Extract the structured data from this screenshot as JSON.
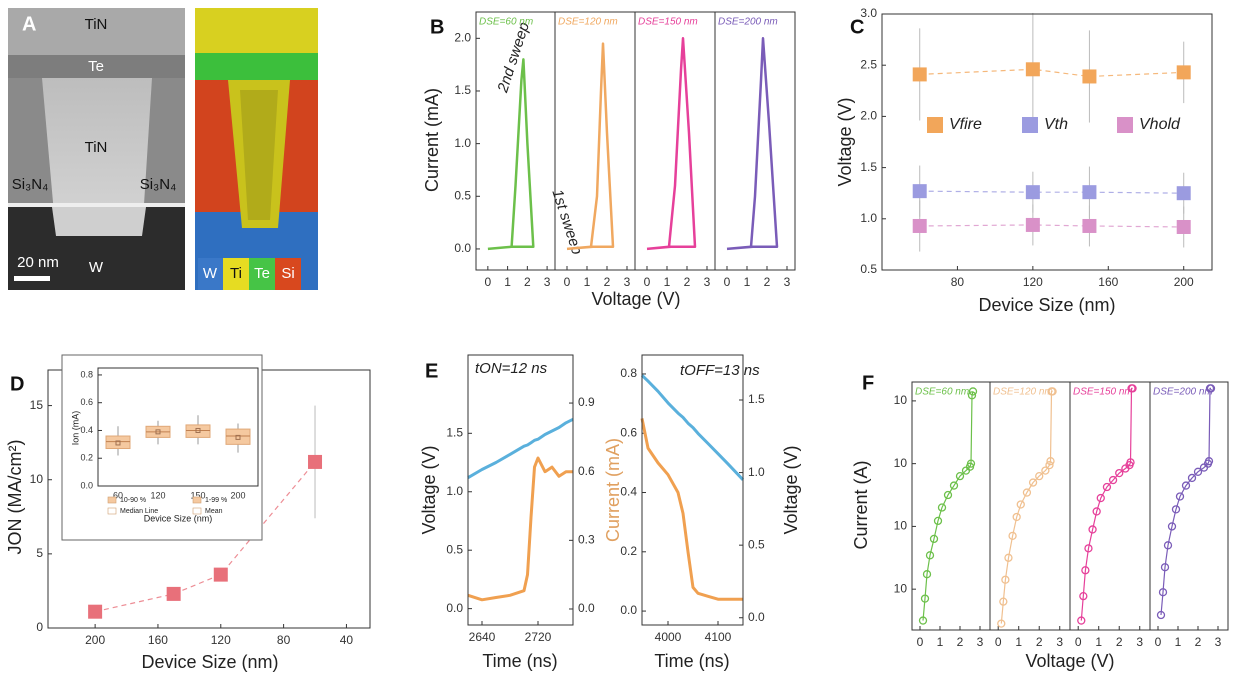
{
  "image_panel": {
    "panel_label": "A",
    "labels": [
      "TiN",
      "Te",
      "TiN",
      "Si₃N₄",
      "Si₃N₄",
      "20 nm",
      "W"
    ],
    "eds_legend": [
      "W",
      "Ti",
      "Te",
      "Si"
    ]
  },
  "chart_data": [
    {
      "type": "line",
      "panel_label": "B",
      "y_label": "Current (mA)",
      "x_label": "Voltage (V)",
      "annotations": [
        "2nd sweep",
        "1st sweep"
      ],
      "x": [
        0,
        1.2,
        1.4,
        1.7,
        1.8,
        2.0,
        2.3,
        1.2,
        0
      ],
      "series": [
        {
          "name": "DSE=60 nm",
          "color": "#6cc04a",
          "values": [
            0,
            0.02,
            0.6,
            1.6,
            1.8,
            1.0,
            0.02,
            0.02,
            0
          ]
        }
      ],
      "xlim": [
        -0.6,
        3.4
      ],
      "xticks": [
        0,
        1,
        2,
        3
      ],
      "ylim": [
        -0.2,
        2.25
      ],
      "yticks": [
        {
          "value": 0,
          "label": "0.0"
        },
        0.5,
        {
          "value": 1,
          "label": "1.0"
        },
        1.5,
        {
          "value": 2,
          "label": "2.0"
        }
      ]
    },
    {
      "type": "line",
      "x": [
        0,
        1.2,
        1.5,
        1.7,
        1.8,
        2.0,
        2.3,
        1.3,
        0
      ],
      "series": [
        {
          "name": "DSE=120 nm",
          "color": "#f0a860",
          "values": [
            0,
            0.02,
            0.5,
            1.5,
            1.95,
            1.1,
            0.02,
            0.02,
            0
          ]
        }
      ],
      "xlim": [
        -0.6,
        3.4
      ],
      "xticks": [
        0,
        1,
        2,
        3
      ],
      "ylim": [
        -0.2,
        2.25
      ]
    },
    {
      "type": "line",
      "x": [
        0,
        1.1,
        1.4,
        1.7,
        1.8,
        2.1,
        2.4,
        1.2,
        0
      ],
      "series": [
        {
          "name": "DSE=150 nm",
          "color": "#e6409a",
          "values": [
            0,
            0.02,
            0.6,
            1.7,
            2.0,
            1.1,
            0.02,
            0.02,
            0
          ]
        }
      ],
      "xlim": [
        -0.6,
        3.4
      ],
      "xticks": [
        0,
        1,
        2,
        3
      ],
      "ylim": [
        -0.2,
        2.25
      ]
    },
    {
      "type": "line",
      "x": [
        0,
        1.2,
        1.4,
        1.7,
        1.8,
        2.1,
        2.5,
        1.3,
        0
      ],
      "series": [
        {
          "name": "DSE=200 nm",
          "color": "#7a5cb8",
          "values": [
            0,
            0.02,
            0.5,
            1.6,
            2.0,
            1.2,
            0.02,
            0.02,
            0
          ]
        }
      ],
      "xlim": [
        -0.6,
        3.4
      ],
      "xticks": [
        0,
        1,
        2,
        3
      ],
      "ylim": [
        -0.2,
        2.25
      ]
    },
    {
      "type": "scatter",
      "panel_label": "C",
      "y_label": "Voltage (V)",
      "x_label": "Device Size (nm)",
      "connect": true,
      "x": [
        60,
        120,
        150,
        200
      ],
      "series": [
        {
          "name": "Vfire",
          "color": "#f2a65a",
          "values": [
            2.41,
            2.46,
            2.39,
            2.43
          ],
          "errors": [
            0.45,
            0.55,
            0.45,
            0.3
          ]
        },
        {
          "name": "Vth",
          "color": "#9b9be0",
          "values": [
            1.27,
            1.26,
            1.26,
            1.25
          ],
          "errors": [
            0.25,
            0.2,
            0.25,
            0.2
          ]
        },
        {
          "name": "Vhold",
          "color": "#d991c8",
          "values": [
            0.93,
            0.94,
            0.93,
            0.92
          ],
          "errors": [
            0.25,
            0.2,
            0.2,
            0.2
          ]
        }
      ],
      "xlim": [
        40,
        215
      ],
      "xticks": [
        80,
        120,
        160,
        200
      ],
      "ylim": [
        0.5,
        3.0
      ],
      "yticks": [
        0.5,
        {
          "value": 1,
          "label": "1.0"
        },
        1.5,
        {
          "value": 2,
          "label": "2.0"
        },
        2.5,
        {
          "value": 3,
          "label": "3.0"
        }
      ]
    },
    {
      "type": "scatter",
      "panel_label": "D",
      "y_label": "JON (MA/cm²)",
      "x_label": "Device Size (nm)",
      "connect": true,
      "x": [
        200,
        150,
        120,
        60
      ],
      "series": [
        {
          "color": "#e8707a",
          "values": [
            1.1,
            2.3,
            3.6,
            11.2
          ],
          "errors": [
            null,
            null,
            null,
            3.8
          ]
        }
      ],
      "xlim": [
        230,
        25
      ],
      "xticks": [
        200,
        160,
        120,
        80,
        40
      ],
      "ylim": [
        0,
        17.4
      ],
      "yticks": [
        0,
        5,
        10,
        15
      ]
    },
    {
      "type": "box",
      "y_label": "Ion (mA)",
      "x_label": "Device Size (nm)",
      "color": "#f5c9a0",
      "categories": [
        "60",
        "120",
        "150",
        "200"
      ],
      "boxes": [
        {
          "low": 0.22,
          "q1": 0.27,
          "median": 0.32,
          "q3": 0.36,
          "high": 0.43,
          "mean": 0.31
        },
        {
          "low": 0.3,
          "q1": 0.35,
          "median": 0.39,
          "q3": 0.43,
          "high": 0.47,
          "mean": 0.39
        },
        {
          "low": 0.3,
          "q1": 0.35,
          "median": 0.4,
          "q3": 0.44,
          "high": 0.51,
          "mean": 0.4
        },
        {
          "low": 0.24,
          "q1": 0.3,
          "median": 0.36,
          "q3": 0.41,
          "high": 0.45,
          "mean": 0.35
        }
      ],
      "legend": [
        "10-90 %",
        "Median Line",
        "1-99 %",
        "Mean"
      ],
      "ylim": [
        0,
        0.85
      ],
      "yticks": [
        {
          "value": 0,
          "label": "0.0"
        },
        0.2,
        0.4,
        0.6,
        {
          "value": 0.8,
          "label": "0.8"
        }
      ]
    },
    {
      "type": "line",
      "panel_label": "E",
      "annotations": [
        "tON=12 ns"
      ],
      "y_label": "Voltage (V)",
      "y2_label": "Current (mA)",
      "x_label": "Time (ns)",
      "x": [
        2620,
        2640,
        2660,
        2680,
        2700,
        2705,
        2710,
        2715,
        2720,
        2730,
        2740,
        2750,
        2760,
        2770
      ],
      "series": [
        {
          "color": "#5ab0dc",
          "values": [
            1.12,
            1.19,
            1.25,
            1.32,
            1.39,
            1.4,
            1.42,
            1.44,
            1.45,
            1.49,
            1.52,
            1.55,
            1.59,
            1.62
          ]
        },
        {
          "color": "#f0a050",
          "axis": "y2",
          "values": [
            0.06,
            0.04,
            0.05,
            0.06,
            0.08,
            0.15,
            0.4,
            0.62,
            0.66,
            0.6,
            0.62,
            0.58,
            0.6,
            0.6
          ]
        }
      ],
      "xlim": [
        2620,
        2770
      ],
      "xticks": [
        2640,
        2720
      ],
      "ylim": [
        -0.14,
        2.17
      ],
      "yticks": [
        {
          "value": 0,
          "label": "0.0"
        },
        0.5,
        {
          "value": 1,
          "label": "1.0"
        },
        1.5
      ],
      "y2lim": [
        -0.07,
        1.11
      ],
      "y2ticks": [
        {
          "value": 0,
          "label": "0.0"
        },
        0.3,
        0.6,
        0.9
      ]
    },
    {
      "type": "line",
      "annotations": [
        "tOFF=13 ns"
      ],
      "y2_label": "Voltage (V)",
      "x_label": "Time (ns)",
      "x": [
        3948,
        3960,
        3980,
        4000,
        4020,
        4030,
        4040,
        4050,
        4060,
        4080,
        4100,
        4120,
        4150
      ],
      "series": [
        {
          "color": "#f0a050",
          "values": [
            0.65,
            0.55,
            0.5,
            0.46,
            0.4,
            0.33,
            0.2,
            0.08,
            0.06,
            0.05,
            0.04,
            0.04,
            0.04
          ]
        },
        {
          "color": "#5ab0dc",
          "axis": "y2",
          "values": [
            1.67,
            1.63,
            1.56,
            1.48,
            1.41,
            1.38,
            1.34,
            1.31,
            1.27,
            1.2,
            1.13,
            1.06,
            0.95
          ]
        }
      ],
      "xlim": [
        3948,
        4150
      ],
      "xticks": [
        4000,
        4100
      ],
      "ylim": [
        -0.047,
        0.864
      ],
      "yticks": [
        {
          "value": 0,
          "label": "0.0"
        },
        0.2,
        0.4,
        0.6,
        0.8
      ],
      "y2lim": [
        -0.05,
        1.81
      ],
      "y2ticks": [
        {
          "value": 0,
          "label": "0.0"
        },
        0.5,
        {
          "value": 1,
          "label": "1.0"
        },
        1.5
      ]
    },
    {
      "type": "line",
      "markers": true,
      "log_y": true,
      "panel_label": "F",
      "y_label": "Current (A)",
      "x": [
        0.15,
        0.25,
        0.35,
        0.5,
        0.7,
        0.9,
        1.1,
        1.4,
        1.7,
        2.0,
        2.3,
        2.5,
        2.55,
        2.6,
        2.65
      ],
      "series": [
        {
          "name": "DSE=60 nm",
          "color": "#6cc04a",
          "values": [
            1e-10,
            5e-10,
            3e-09,
            1.2e-08,
            4e-08,
            1.5e-07,
            4e-07,
            1e-06,
            2e-06,
            4e-06,
            6e-06,
            8e-06,
            1e-05,
            0.0015,
            0.002
          ]
        }
      ],
      "xlim": [
        -0.4,
        3.5
      ],
      "xticks": [
        0,
        1,
        2,
        3
      ],
      "ylim": [
        5e-11,
        0.004
      ],
      "yticks": [
        {
          "value": 1e-09,
          "label": "10"
        },
        {
          "value": 1e-07,
          "label": "10"
        },
        {
          "value": 1e-05,
          "label": "10"
        },
        {
          "value": 0.001,
          "label": "10"
        }
      ]
    },
    {
      "type": "line",
      "markers": true,
      "log_y": true,
      "x_label": "Voltage (V)",
      "x": [
        0.15,
        0.25,
        0.35,
        0.5,
        0.7,
        0.9,
        1.1,
        1.4,
        1.7,
        2.0,
        2.3,
        2.5,
        2.55,
        2.6,
        2.65
      ],
      "series": [
        {
          "name": "DSE=120 nm",
          "color": "#f0c090",
          "values": [
            8e-11,
            4e-10,
            2e-09,
            1e-08,
            5e-08,
            2e-07,
            5e-07,
            1.2e-06,
            2.5e-06,
            4e-06,
            6e-06,
            9e-06,
            1.2e-05,
            0.002,
            0.002
          ]
        }
      ],
      "xlim": [
        -0.4,
        3.5
      ],
      "xticks": [
        0,
        1,
        2,
        3
      ],
      "ylim": [
        5e-11,
        0.004
      ]
    },
    {
      "type": "line",
      "markers": true,
      "log_y": true,
      "x": [
        0.15,
        0.25,
        0.35,
        0.5,
        0.7,
        0.9,
        1.1,
        1.4,
        1.7,
        2.0,
        2.3,
        2.5,
        2.55,
        2.6,
        2.65
      ],
      "series": [
        {
          "name": "DSE=150 nm",
          "color": "#e6409a",
          "values": [
            1e-10,
            6e-10,
            4e-09,
            2e-08,
            8e-08,
            3e-07,
            8e-07,
            1.8e-06,
            3e-06,
            5e-06,
            7e-06,
            9e-06,
            1.1e-05,
            0.0025,
            0.0025
          ]
        }
      ],
      "xlim": [
        -0.4,
        3.5
      ],
      "xticks": [
        0,
        1,
        2,
        3
      ],
      "ylim": [
        5e-11,
        0.004
      ]
    },
    {
      "type": "line",
      "markers": true,
      "log_y": true,
      "x": [
        0.15,
        0.25,
        0.35,
        0.5,
        0.7,
        0.9,
        1.1,
        1.4,
        1.7,
        2.0,
        2.3,
        2.5,
        2.55,
        2.6,
        2.65
      ],
      "series": [
        {
          "name": "DSE=200 nm",
          "color": "#7a5cb8",
          "values": [
            1.5e-10,
            8e-10,
            5e-09,
            2.5e-08,
            1e-07,
            3.5e-07,
            9e-07,
            2e-06,
            3.5e-06,
            5.5e-06,
            7.5e-06,
            1e-05,
            1.2e-05,
            0.0025,
            0.0025
          ]
        }
      ],
      "xlim": [
        -0.4,
        3.5
      ],
      "xticks": [
        0,
        1,
        2,
        3
      ],
      "ylim": [
        5e-11,
        0.004
      ]
    }
  ]
}
